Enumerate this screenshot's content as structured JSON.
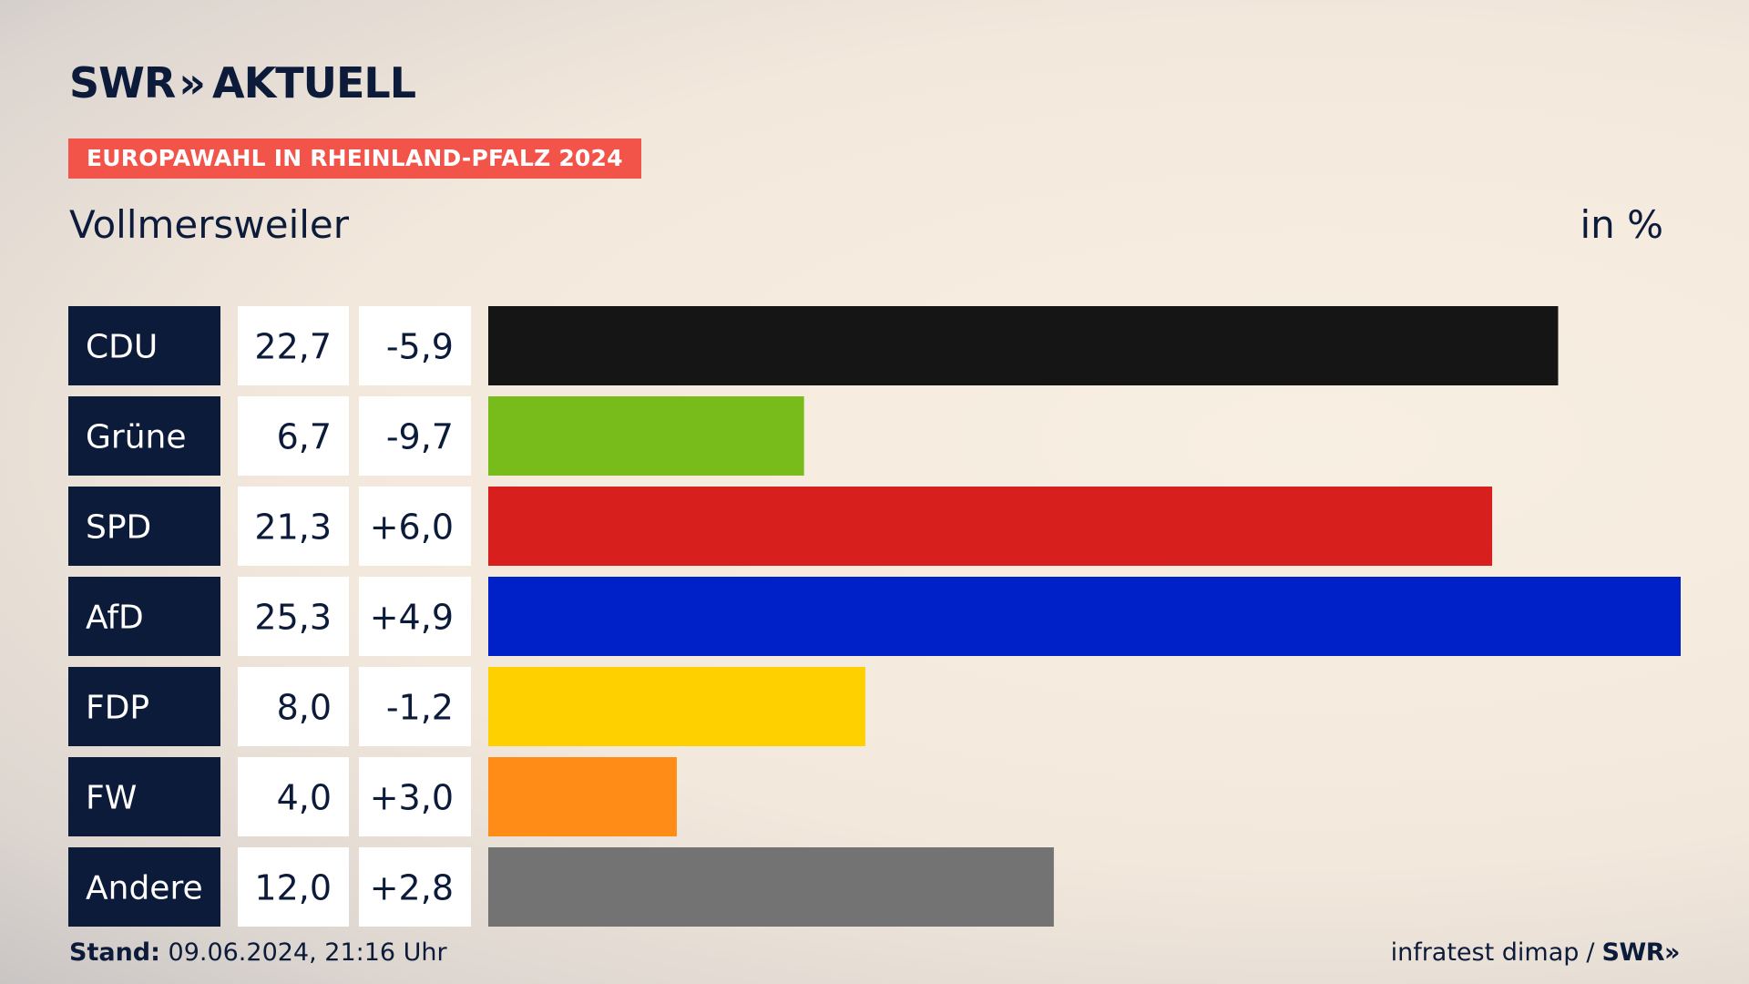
{
  "brand": {
    "name_left": "SWR",
    "chevron": "»",
    "name_right": "AKTUELL"
  },
  "header": {
    "tag": "EUROPAWAHL IN RHEINLAND-PFALZ 2024",
    "place": "Vollmersweiler",
    "unit": "in %"
  },
  "footer": {
    "stand_label": "Stand:",
    "stand_value": "09.06.2024, 21:16 Uhr",
    "source": "infratest dimap",
    "separator": "/",
    "swr": "SWR",
    "chevron": "»"
  },
  "chart_data": {
    "type": "bar",
    "categories": [
      "CDU",
      "Grüne",
      "SPD",
      "AfD",
      "FDP",
      "FW",
      "Andere"
    ],
    "values": [
      22.7,
      6.7,
      21.3,
      25.3,
      8.0,
      4.0,
      12.0
    ],
    "value_labels": [
      "22,7",
      "6,7",
      "21,3",
      "25,3",
      "8,0",
      "4,0",
      "12,0"
    ],
    "changes": [
      -5.9,
      -9.7,
      6.0,
      4.9,
      -1.2,
      3.0,
      2.8
    ],
    "change_labels": [
      "-5,9",
      "-9,7",
      "+6,0",
      "+4,9",
      "-1,2",
      "+3,0",
      "+2,8"
    ],
    "colors": [
      "#151515",
      "#78bc1b",
      "#d71f1d",
      "#0021c8",
      "#fed000",
      "#ff8c16",
      "#737373"
    ],
    "xlim": [
      0,
      25.3
    ],
    "grid": false,
    "legend": "none"
  }
}
